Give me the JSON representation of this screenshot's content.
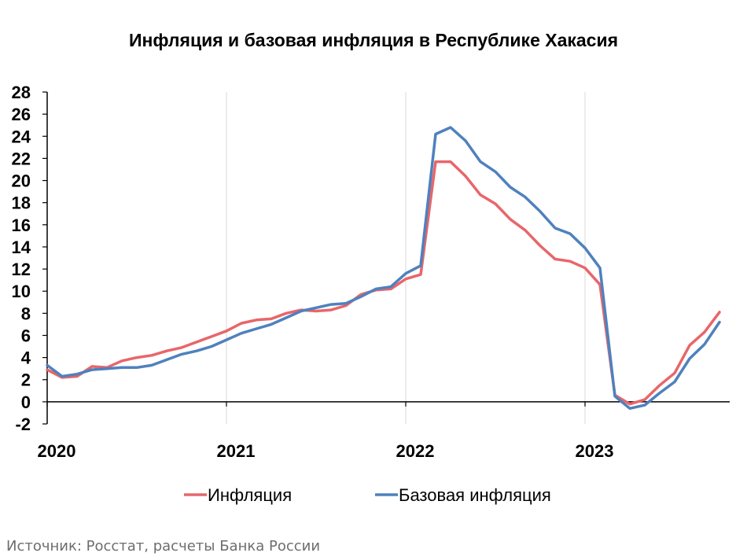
{
  "chart_data": {
    "type": "line",
    "title": "Инфляция и базовая инфляция в Республике Хакасия",
    "xlabel": "",
    "ylabel": "",
    "ylim": [
      -2,
      28
    ],
    "yticks": [
      -2,
      0,
      2,
      4,
      6,
      8,
      10,
      12,
      14,
      16,
      18,
      20,
      22,
      24,
      26,
      28
    ],
    "xticks": [
      "2020",
      "2021",
      "2022",
      "2023"
    ],
    "grid": "vertical",
    "legend_position": "bottom",
    "x": [
      "2020-01",
      "2020-02",
      "2020-03",
      "2020-04",
      "2020-05",
      "2020-06",
      "2020-07",
      "2020-08",
      "2020-09",
      "2020-10",
      "2020-11",
      "2020-12",
      "2021-01",
      "2021-02",
      "2021-03",
      "2021-04",
      "2021-05",
      "2021-06",
      "2021-07",
      "2021-08",
      "2021-09",
      "2021-10",
      "2021-11",
      "2021-12",
      "2022-01",
      "2022-02",
      "2022-03",
      "2022-04",
      "2022-05",
      "2022-06",
      "2022-07",
      "2022-08",
      "2022-09",
      "2022-10",
      "2022-11",
      "2022-12",
      "2023-01",
      "2023-02",
      "2023-03",
      "2023-04",
      "2023-05",
      "2023-06",
      "2023-07",
      "2023-08",
      "2023-09",
      "2023-10"
    ],
    "series": [
      {
        "name": "Инфляция",
        "color": "#e8666a",
        "values": [
          2.9,
          2.2,
          2.3,
          3.2,
          3.1,
          3.7,
          4.0,
          4.2,
          4.6,
          4.9,
          5.4,
          5.9,
          6.4,
          7.1,
          7.4,
          7.5,
          8.0,
          8.3,
          8.2,
          8.3,
          8.7,
          9.7,
          10.1,
          10.2,
          11.1,
          11.5,
          21.7,
          21.7,
          20.4,
          18.7,
          17.9,
          16.5,
          15.5,
          14.1,
          12.9,
          12.7,
          12.1,
          10.6,
          0.6,
          -0.2,
          0.2,
          1.5,
          2.6,
          5.1,
          6.3,
          8.1
        ]
      },
      {
        "name": "Базовая инфляция",
        "color": "#4f81bd",
        "values": [
          3.3,
          2.3,
          2.5,
          2.9,
          3.0,
          3.1,
          3.1,
          3.3,
          3.8,
          4.3,
          4.6,
          5.0,
          5.6,
          6.2,
          6.6,
          7.0,
          7.6,
          8.2,
          8.5,
          8.8,
          8.9,
          9.5,
          10.2,
          10.4,
          11.6,
          12.3,
          24.2,
          24.8,
          23.6,
          21.7,
          20.8,
          19.4,
          18.5,
          17.2,
          15.7,
          15.2,
          13.9,
          12.1,
          0.5,
          -0.6,
          -0.3,
          0.8,
          1.8,
          3.9,
          5.2,
          7.2
        ]
      }
    ]
  },
  "source": "Источник: Росстат, расчеты Банка России"
}
